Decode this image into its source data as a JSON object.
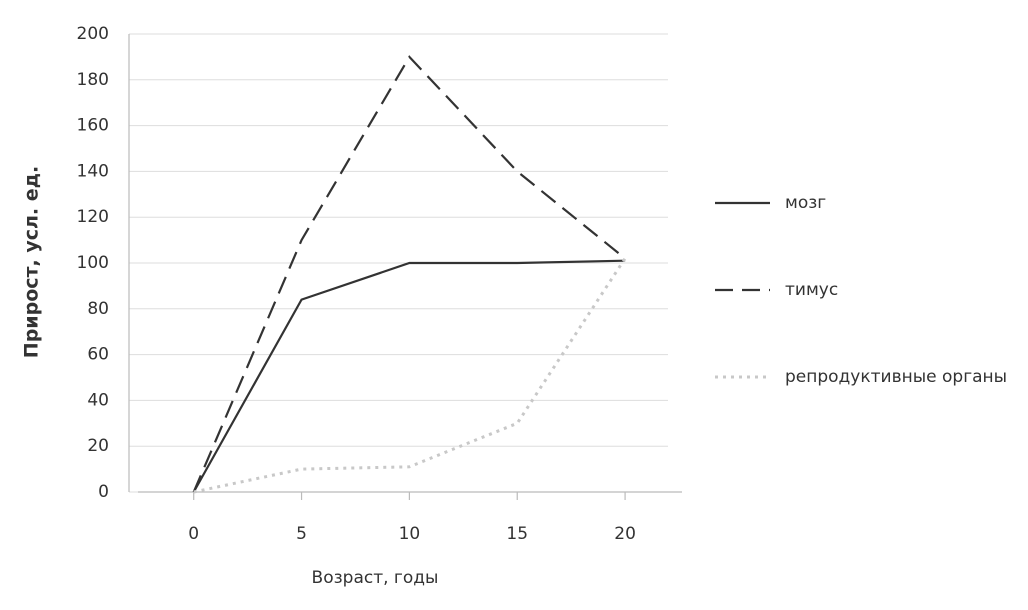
{
  "chart_data": {
    "type": "line",
    "xlabel": "Возраст, годы",
    "ylabel": "Прирост, усл. ед.",
    "x": [
      0,
      5,
      10,
      15,
      20
    ],
    "series": [
      {
        "name": "мозг",
        "color": "#333333",
        "dash": "solid",
        "values": [
          0,
          84,
          100,
          100,
          101
        ]
      },
      {
        "name": "тимус",
        "color": "#333333",
        "dash": "dashed",
        "values": [
          0,
          110,
          190,
          140,
          102
        ]
      },
      {
        "name": "репродуктивные органы",
        "color": "#c8c8c8",
        "dash": "dotted",
        "values": [
          0,
          10,
          11,
          30,
          102
        ]
      }
    ],
    "xlim": [
      -3,
      22.5
    ],
    "ylim": [
      0,
      200
    ],
    "xticks": [
      0,
      5,
      10,
      15,
      20
    ],
    "yticks": [
      0,
      20,
      40,
      60,
      80,
      100,
      120,
      140,
      160,
      180,
      200
    ],
    "grid": true,
    "legend": "right"
  }
}
